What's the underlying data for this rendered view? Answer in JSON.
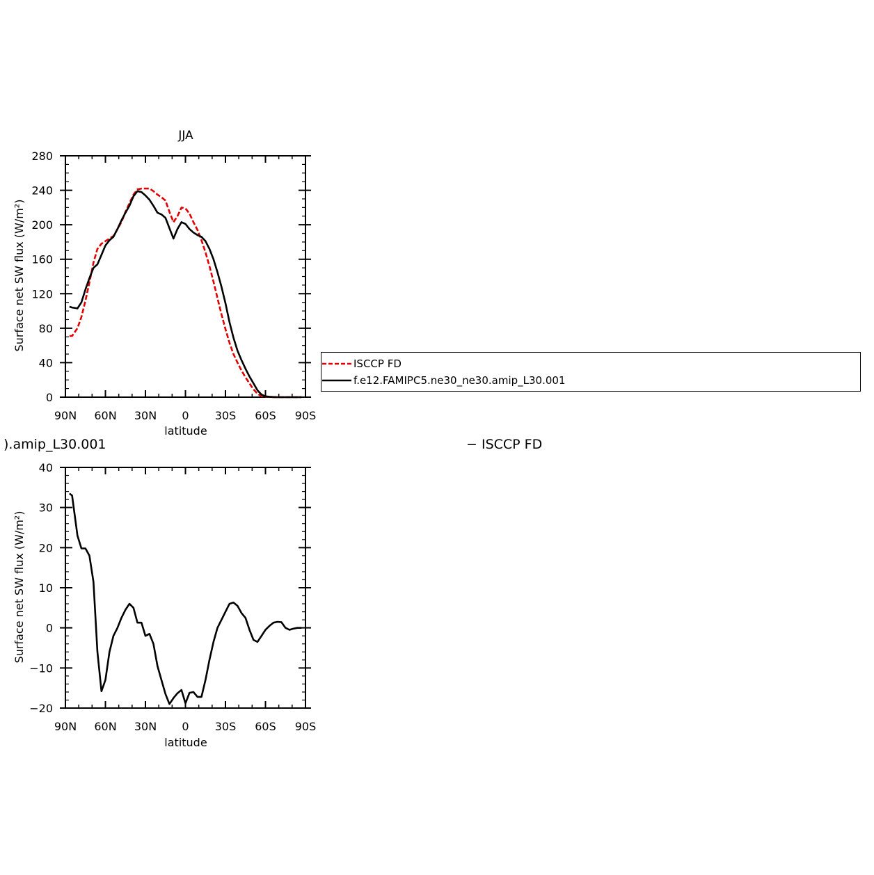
{
  "chart_data": [
    {
      "type": "line",
      "title": "JJA",
      "xlabel": "latitude",
      "ylabel": "Surface net SW flux (W/m²)",
      "xlim": [
        90,
        -90
      ],
      "ylim": [
        0,
        280
      ],
      "xticks": [
        90,
        60,
        30,
        0,
        -30,
        -60,
        -90
      ],
      "xtick_labels": [
        "90N",
        "60N",
        "30N",
        "0",
        "30S",
        "60S",
        "90S"
      ],
      "yticks": [
        0,
        40,
        80,
        120,
        160,
        200,
        240,
        280
      ],
      "ytick_labels": [
        "0",
        "40",
        "80",
        "120",
        "160",
        "200",
        "240",
        "280"
      ],
      "grid": false,
      "series": [
        {
          "name": "ISCCP FD",
          "color": "#e00000",
          "dash": "dashed",
          "x": [
            87,
            85,
            81,
            78,
            75,
            72,
            69,
            66,
            63,
            60,
            57,
            54,
            51,
            48,
            45,
            42,
            39,
            36,
            33,
            30,
            27,
            24,
            21,
            18,
            15,
            12,
            9,
            6,
            3,
            0,
            -3,
            -6,
            -9,
            -12,
            -15,
            -18,
            -21,
            -24,
            -27,
            -30,
            -33,
            -36,
            -39,
            -42,
            -45,
            -48,
            -51,
            -54,
            -57,
            -60,
            -63,
            -66,
            -69,
            -72,
            -75,
            -78,
            -81,
            -84,
            -87
          ],
          "y": [
            71,
            71,
            80,
            93,
            112,
            133,
            156,
            172,
            178,
            181,
            184,
            187,
            195,
            203,
            215,
            225,
            235,
            241,
            242,
            242,
            242,
            239,
            235,
            232,
            228,
            215,
            203,
            210,
            220,
            219,
            213,
            203,
            194,
            182,
            168,
            152,
            134,
            115,
            96,
            79,
            63,
            50,
            40,
            31,
            23,
            16,
            9,
            4,
            1,
            0.5,
            0.2,
            0.1,
            0,
            0,
            0,
            0,
            0,
            0,
            0
          ]
        },
        {
          "name": "f.e12.FAMIPC5.ne30_ne30.amip_L30.001",
          "color": "#000000",
          "dash": "solid",
          "x": [
            87,
            85,
            81,
            78,
            75,
            72,
            69,
            66,
            63,
            60,
            57,
            54,
            51,
            48,
            45,
            42,
            39,
            36,
            33,
            30,
            27,
            24,
            21,
            18,
            15,
            12,
            9,
            6,
            3,
            0,
            -3,
            -6,
            -9,
            -12,
            -15,
            -18,
            -21,
            -24,
            -27,
            -30,
            -33,
            -36,
            -39,
            -42,
            -45,
            -48,
            -51,
            -54,
            -57,
            -60,
            -63,
            -66,
            -69,
            -72,
            -75,
            -78,
            -81,
            -84,
            -87
          ],
          "y": [
            105,
            104,
            103,
            110,
            125,
            138,
            150,
            154,
            165,
            176,
            182,
            186,
            195,
            205,
            214,
            222,
            233,
            239,
            238,
            234,
            229,
            222,
            214,
            212,
            208,
            196,
            184,
            195,
            203,
            201,
            195,
            191,
            188,
            186,
            181,
            172,
            160,
            145,
            128,
            109,
            87,
            69,
            54,
            43,
            33,
            24,
            16,
            8,
            3,
            1,
            0.5,
            0.2,
            0,
            0,
            0,
            0,
            0,
            0,
            0
          ]
        }
      ]
    },
    {
      "type": "line",
      "title": ").amip_L30.001",
      "title_right": "− ISCCP FD",
      "xlabel": "latitude",
      "ylabel": "Surface net SW flux (W/m²)",
      "xlim": [
        90,
        -90
      ],
      "ylim": [
        -20,
        40
      ],
      "xticks": [
        90,
        60,
        30,
        0,
        -30,
        -60,
        -90
      ],
      "xtick_labels": [
        "90N",
        "60N",
        "30N",
        "0",
        "30S",
        "60S",
        "90S"
      ],
      "yticks": [
        -20,
        -10,
        0,
        10,
        20,
        30,
        40
      ],
      "ytick_labels": [
        "−20",
        "−10",
        "0",
        "10",
        "20",
        "30",
        "40"
      ],
      "grid": false,
      "series": [
        {
          "color": "#000000",
          "dash": "solid",
          "x": [
            87,
            85,
            81,
            78,
            75,
            72,
            69,
            66,
            63,
            60,
            57,
            54,
            51,
            48,
            45,
            42,
            39,
            36,
            33,
            30,
            27,
            24,
            21,
            18,
            15,
            12,
            9,
            6,
            3,
            0,
            -3,
            -6,
            -9,
            -12,
            -15,
            -18,
            -21,
            -24,
            -27,
            -30,
            -33,
            -36,
            -39,
            -42,
            -45,
            -48,
            -51,
            -54,
            -57,
            -60,
            -63,
            -66,
            -69,
            -72,
            -75,
            -78,
            -81,
            -84,
            -87
          ],
          "y": [
            33.5,
            33,
            23,
            19.8,
            19.8,
            18,
            11.5,
            -6,
            -15.8,
            -13,
            -6,
            -2,
            0,
            2.5,
            4.5,
            6,
            5,
            1.3,
            1.3,
            -2,
            -1.5,
            -4,
            -9.5,
            -13,
            -16.5,
            -19,
            -17.5,
            -16.3,
            -15.5,
            -18.8,
            -16.2,
            -16,
            -17.2,
            -17.2,
            -13,
            -8,
            -3.5,
            0,
            2,
            4,
            6,
            6.3,
            5.5,
            3.7,
            2.5,
            -0.5,
            -3,
            -3.5,
            -2,
            -0.5,
            0.5,
            1.3,
            1.5,
            1.4,
            0,
            -0.5,
            -0.2,
            0,
            0
          ]
        }
      ]
    }
  ],
  "legend": {
    "items": [
      {
        "label": "ISCCP FD",
        "color": "#e00000",
        "dash": "dashed"
      },
      {
        "label": "f.e12.FAMIPC5.ne30_ne30.amip_L30.001",
        "color": "#000000",
        "dash": "solid"
      }
    ]
  }
}
